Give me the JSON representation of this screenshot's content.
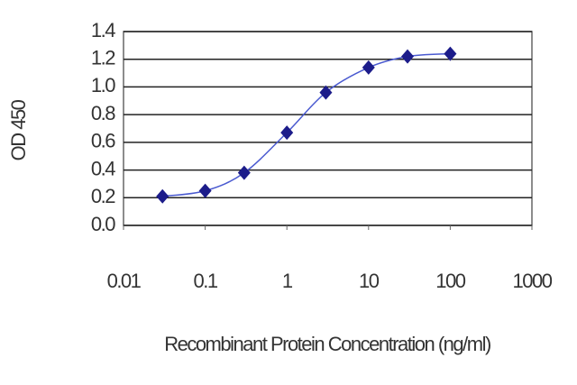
{
  "chart_data": {
    "type": "scatter",
    "y_label": "OD 450",
    "x_label": "Recombinant Protein Concentration (ng/ml)",
    "x_log": true,
    "xlim": [
      0.01,
      1000
    ],
    "xticks": [
      0.01,
      0.1,
      1,
      10,
      100,
      1000
    ],
    "ylim": [
      0,
      1.4
    ],
    "yticks": [
      {
        "value": 0,
        "label": "0.0"
      },
      0.2,
      0.4,
      0.6,
      0.8,
      {
        "value": 1,
        "label": "1.0"
      },
      1.2,
      1.4
    ],
    "grid": true,
    "series": [
      {
        "color": "#1c1c8a",
        "line_color": "#4a5ad0",
        "x": [
          0.03,
          0.1,
          0.3,
          1,
          3,
          10,
          30,
          100
        ],
        "values": [
          0.21,
          0.25,
          0.38,
          0.67,
          0.96,
          1.14,
          1.22,
          1.24
        ]
      }
    ]
  }
}
